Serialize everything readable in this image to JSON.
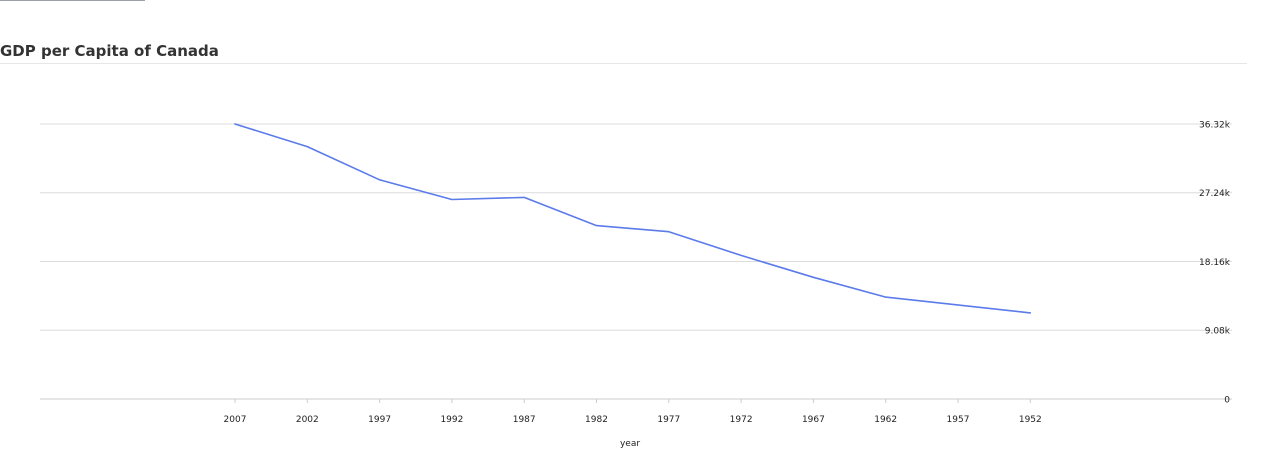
{
  "header": {
    "title": "GDP per Capita of Canada"
  },
  "chart_data": {
    "type": "line",
    "title": "GDP per Capita of Canada",
    "xlabel": "year",
    "ylabel": "",
    "x": [
      "2007",
      "2002",
      "1997",
      "1992",
      "1987",
      "1982",
      "1977",
      "1972",
      "1967",
      "1962",
      "1957",
      "1952"
    ],
    "series": [
      {
        "values": [
          36319,
          33329,
          28955,
          26343,
          26627,
          22899,
          22091,
          18971,
          16077,
          13463,
          null,
          11367
        ]
      }
    ],
    "ylim": [
      0,
      36319
    ],
    "y_ticks": [
      0,
      9080,
      18160,
      27240,
      36320
    ],
    "y_tick_labels": [
      "0",
      "9.08k",
      "18.16k",
      "27.24k",
      "36.32k"
    ],
    "y_axis_side": "right",
    "grid": true,
    "legend": "none",
    "line_color": "#5b7bea"
  }
}
